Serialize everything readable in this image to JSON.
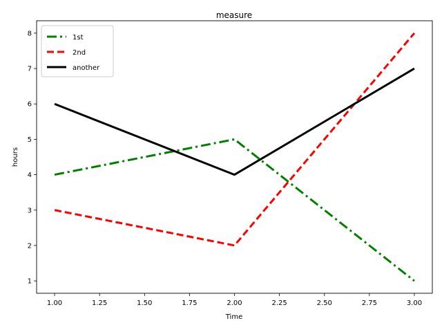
{
  "chart_data": {
    "type": "line",
    "title": "measure",
    "xlabel": "Time",
    "ylabel": "hours",
    "xlim": [
      0.9,
      3.1
    ],
    "ylim": [
      0.65,
      8.35
    ],
    "x_ticks": [
      "1.00",
      "1.25",
      "1.50",
      "1.75",
      "2.00",
      "2.25",
      "2.50",
      "2.75",
      "3.00"
    ],
    "y_ticks": [
      "1",
      "2",
      "3",
      "4",
      "5",
      "6",
      "7",
      "8"
    ],
    "grid": false,
    "legend_position": "top-left",
    "x": [
      1,
      2,
      3
    ],
    "series": [
      {
        "name": "1st",
        "values": [
          4,
          5,
          1
        ],
        "color": "#008000",
        "linestyle": "dash-dot"
      },
      {
        "name": "2nd",
        "values": [
          3,
          2,
          8
        ],
        "color": "#ff0000",
        "linestyle": "dashed"
      },
      {
        "name": "another",
        "values": [
          6,
          4,
          7
        ],
        "color": "#000000",
        "linestyle": "solid"
      }
    ]
  }
}
